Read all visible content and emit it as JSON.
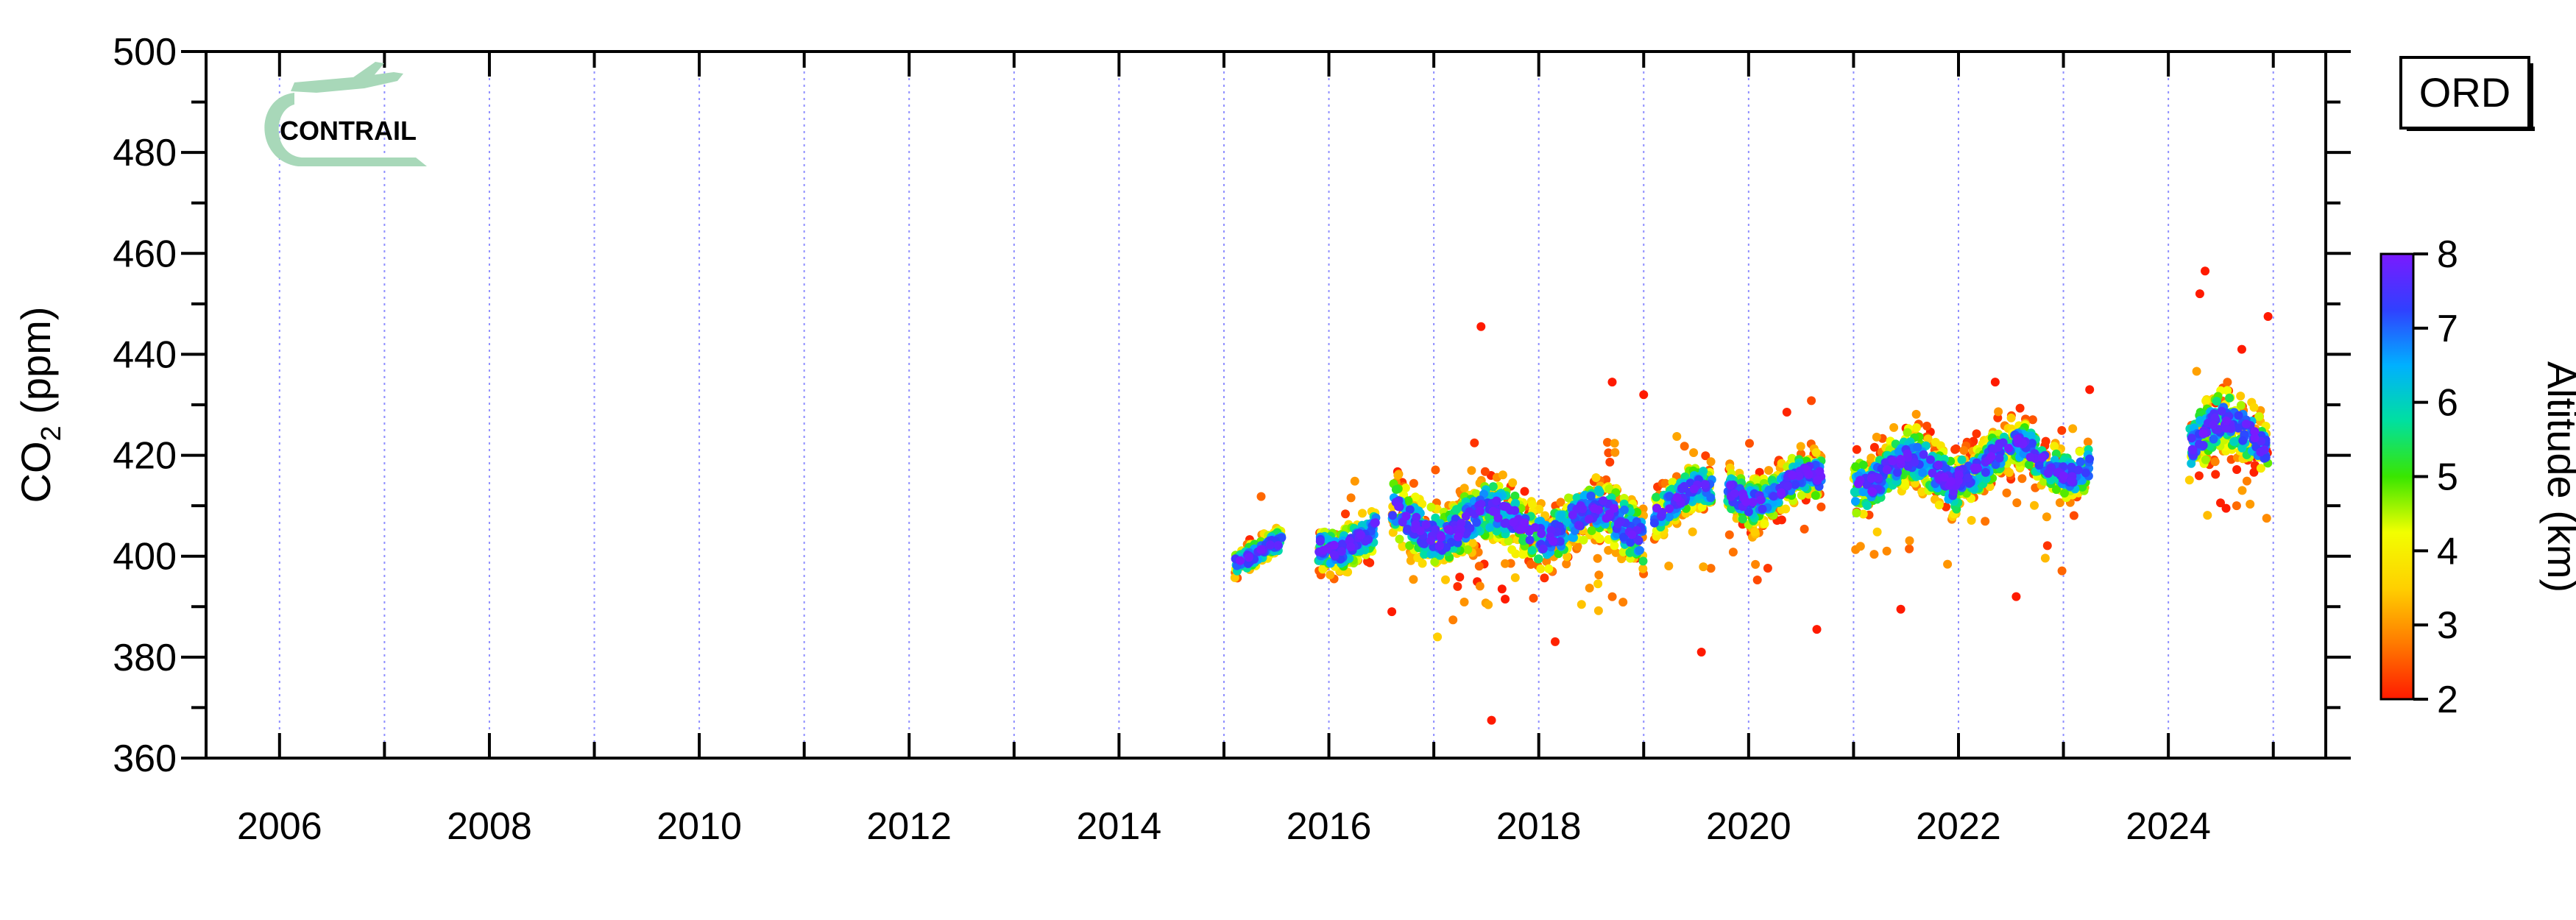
{
  "chart_data": {
    "type": "scatter",
    "title": "",
    "station": "ORD",
    "logo": "CONTRAIL",
    "ylabel_main": "CO",
    "ylabel_sub": "2",
    "ylabel_unit": " (ppm)",
    "xlabel": "",
    "xlim": [
      2005.3,
      2025.5
    ],
    "ylim": [
      360,
      500
    ],
    "x_ticks": [
      "2006",
      "2008",
      "2010",
      "2012",
      "2014",
      "2016",
      "2018",
      "2020",
      "2022",
      "2024"
    ],
    "y_ticks": [
      "360",
      "380",
      "400",
      "420",
      "440",
      "460",
      "480",
      "500"
    ],
    "grid": "vertical dotted lines at each year",
    "colorbar": {
      "label": "Altitude (km)",
      "range": [
        2,
        8
      ],
      "ticks": [
        "2",
        "3",
        "4",
        "5",
        "6",
        "7",
        "8"
      ],
      "colors": [
        "#ff1a00",
        "#ff7a00",
        "#ffd000",
        "#f2ff00",
        "#39e600",
        "#00e0a0",
        "#00b0ff",
        "#3040ff",
        "#7a1aff"
      ]
    },
    "segments": [
      {
        "t0": 2015.1,
        "t1": 2015.55,
        "base": 400.5,
        "amp": 2.2,
        "spread": 6,
        "low": 0
      },
      {
        "t0": 2015.9,
        "t1": 2016.45,
        "base": 403.5,
        "amp": 2.5,
        "spread": 10,
        "low": 0
      },
      {
        "t0": 2016.6,
        "t1": 2019.0,
        "base": 406.5,
        "amp": 3.0,
        "spread": 14,
        "low": 1
      },
      {
        "t0": 2019.1,
        "t1": 2019.65,
        "base": 411.0,
        "amp": 3.0,
        "spread": 10,
        "low": 1
      },
      {
        "t0": 2019.8,
        "t1": 2020.7,
        "base": 413.5,
        "amp": 3.0,
        "spread": 11,
        "low": 1
      },
      {
        "t0": 2021.0,
        "t1": 2022.0,
        "base": 416.5,
        "amp": 3.2,
        "spread": 13,
        "low": 1
      },
      {
        "t0": 2022.0,
        "t1": 2023.25,
        "base": 419.0,
        "amp": 3.2,
        "spread": 11,
        "low": 1
      },
      {
        "t0": 2024.2,
        "t1": 2024.95,
        "base": 423.5,
        "amp": 3.5,
        "spread": 14,
        "low": 1
      }
    ],
    "outliers": [
      {
        "x": 2017.45,
        "y": 445.5
      },
      {
        "x": 2017.65,
        "y": 393.5
      },
      {
        "x": 2017.68,
        "y": 391.5
      },
      {
        "x": 2016.6,
        "y": 389.0
      },
      {
        "x": 2017.55,
        "y": 367.5
      },
      {
        "x": 2018.7,
        "y": 434.5
      },
      {
        "x": 2019.0,
        "y": 432.0
      },
      {
        "x": 2024.35,
        "y": 456.5
      },
      {
        "x": 2024.3,
        "y": 452.0
      },
      {
        "x": 2024.95,
        "y": 447.5
      },
      {
        "x": 2024.7,
        "y": 441.0
      },
      {
        "x": 2024.55,
        "y": 409.5
      },
      {
        "x": 2022.35,
        "y": 434.5
      },
      {
        "x": 2022.55,
        "y": 392.0
      },
      {
        "x": 2023.25,
        "y": 433.0
      },
      {
        "x": 2019.55,
        "y": 381.0
      },
      {
        "x": 2020.65,
        "y": 385.5
      },
      {
        "x": 2021.45,
        "y": 389.5
      }
    ]
  }
}
